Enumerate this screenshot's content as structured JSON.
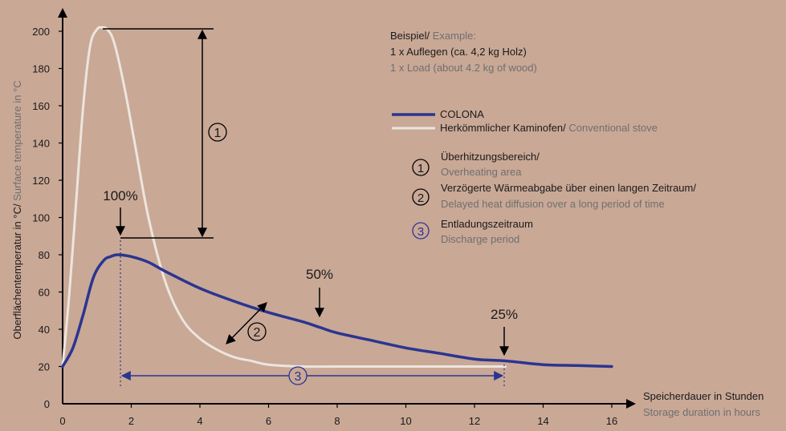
{
  "chart_data": {
    "type": "line",
    "x_ticks": [
      0,
      2,
      4,
      6,
      8,
      10,
      12,
      14,
      16
    ],
    "y_ticks": [
      0,
      20,
      40,
      60,
      80,
      100,
      120,
      140,
      160,
      180,
      200
    ],
    "xlim": [
      0,
      16.5
    ],
    "ylim": [
      0,
      210
    ],
    "xlabel_de": "Speicherdauer in Stunden",
    "xlabel_en": "Storage duration in hours",
    "ylabel_de": "Oberflächentemperatur in °C/",
    "ylabel_en": " Surface temperature in °C",
    "series": [
      {
        "name": "COLONA",
        "color": "#2b3590",
        "x": [
          0,
          0.3,
          0.6,
          0.9,
          1.2,
          1.4,
          1.6,
          2.0,
          2.5,
          3.0,
          4.0,
          5.0,
          6.0,
          7.0,
          7.5,
          8.0,
          9.0,
          10.0,
          11.0,
          12.0,
          12.9,
          14.0,
          15.0,
          16.0
        ],
        "y": [
          20,
          30,
          48,
          68,
          77,
          79,
          80,
          79,
          76,
          71,
          62,
          55,
          49,
          44,
          41,
          38,
          34,
          30,
          27,
          24,
          23,
          21,
          20.5,
          20
        ]
      },
      {
        "name": "Herkömmlicher Kaminofen/ Conventional stove",
        "color": "#ece5de",
        "x": [
          0,
          0.2,
          0.4,
          0.6,
          0.8,
          1.0,
          1.15,
          1.3,
          1.5,
          1.8,
          2.1,
          2.5,
          3.0,
          3.5,
          4.0,
          4.5,
          5.0,
          5.5,
          6.0,
          7.0,
          8.0,
          10.0,
          12.0,
          12.9
        ],
        "y": [
          20,
          60,
          110,
          160,
          192,
          201,
          202,
          201,
          194,
          170,
          140,
          100,
          65,
          45,
          35,
          29,
          25,
          23,
          21,
          20,
          20,
          20,
          20,
          20
        ]
      }
    ],
    "annotations": {
      "peak_label": "100%",
      "half_label": "50%",
      "quarter_label": "25%",
      "marker_1": "1",
      "marker_2": "2",
      "marker_3": "3"
    }
  },
  "info": {
    "example_de": "Beispiel/",
    "example_en": " Example:",
    "load_de": "1 x Auflegen (ca. 4,2 kg Holz)",
    "load_en": "1 x Load (about 4.2 kg of wood)"
  },
  "legend": {
    "colona": "COLONA",
    "conventional_de": "Herkömmlicher Kaminofen/",
    "conventional_en": " Conventional stove"
  },
  "notes": [
    {
      "num": "1",
      "de": "Überhitzungsbereich/",
      "en": "Overheating area"
    },
    {
      "num": "2",
      "de": "Verzögerte Wärmeabgabe über einen langen Zeitraum/",
      "en": "Delayed heat diffusion over a long period of time"
    },
    {
      "num": "3",
      "de": "Entladungszeitraum",
      "en": "Discharge period"
    }
  ],
  "colors": {
    "background": "#c9a896",
    "colona": "#2b3590",
    "conventional": "#ece5de",
    "axis": "#000000"
  }
}
